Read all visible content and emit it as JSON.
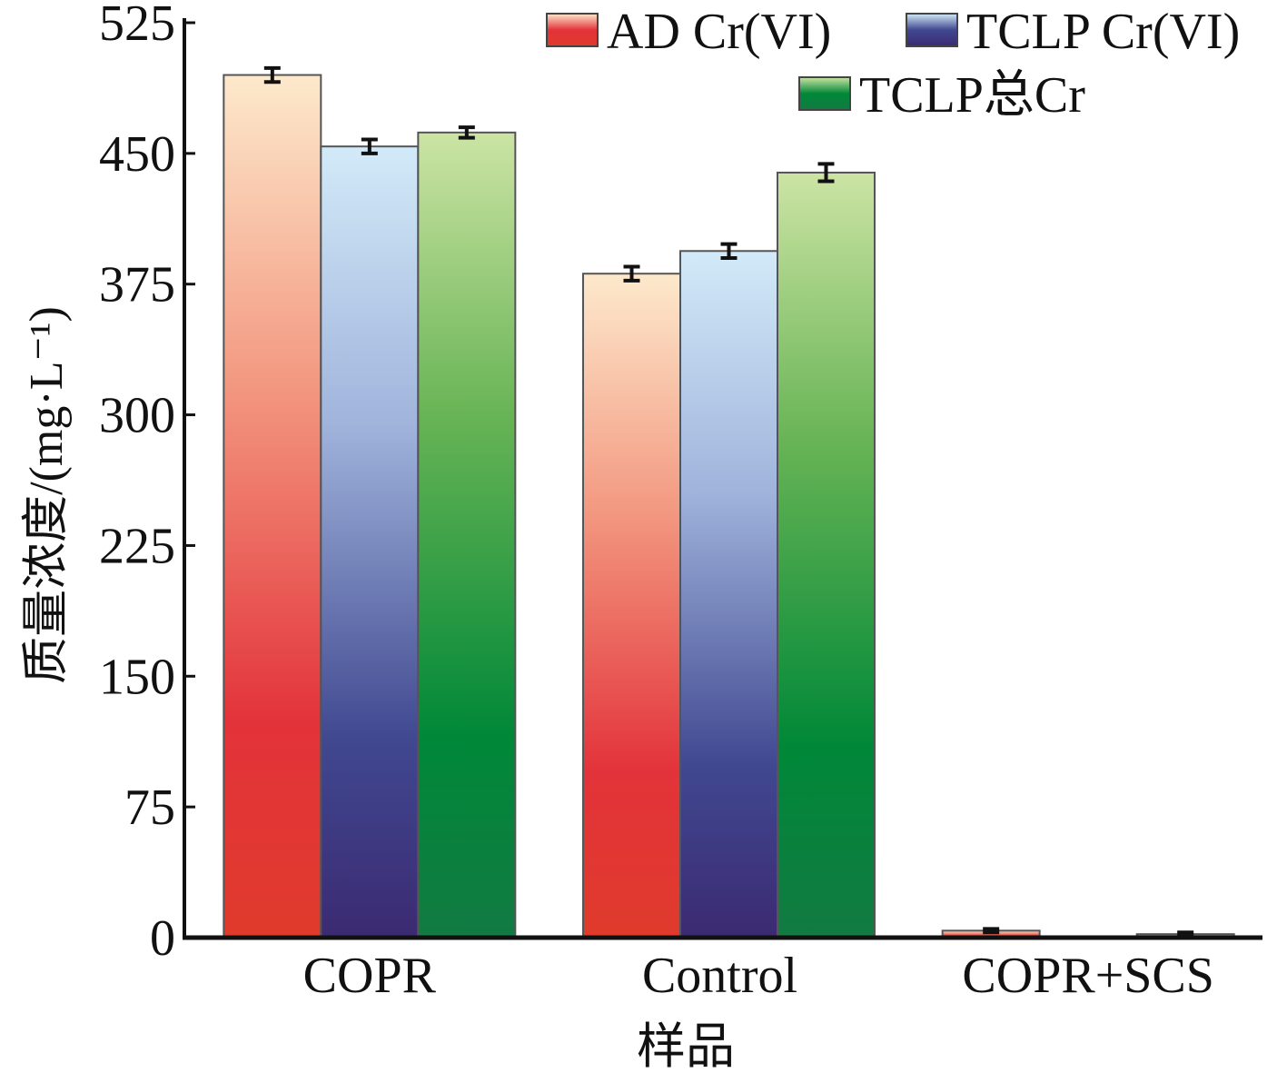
{
  "chart_data": {
    "type": "bar",
    "title": "",
    "xlabel": "样品",
    "ylabel": "质量浓度/(mg·L⁻¹)",
    "ylim": [
      0,
      525
    ],
    "yticks": [
      0,
      75,
      150,
      225,
      300,
      375,
      450,
      525
    ],
    "categories": [
      "COPR",
      "Control",
      "COPR+SCS"
    ],
    "series": [
      {
        "name": "AD Cr(VI)",
        "values": [
          495,
          381,
          4
        ],
        "errors": [
          4,
          4,
          1
        ],
        "colors": [
          "#fde9cc",
          "#f39a82",
          "#e3333a",
          "#e03a2c"
        ]
      },
      {
        "name": "TCLP Cr(VI)",
        "values": [
          454,
          394,
          0.3
        ],
        "errors": [
          4,
          4,
          0
        ],
        "colors": [
          "#d2eaf8",
          "#a0b4dc",
          "#404890",
          "#3b2a72"
        ]
      },
      {
        "name": "TCLP总Cr",
        "values": [
          462,
          439,
          2
        ],
        "errors": [
          3,
          5,
          1
        ],
        "colors": [
          "#cce4a4",
          "#68b455",
          "#008838",
          "#127a42"
        ]
      }
    ],
    "legend_position": "top-right",
    "grid": false
  }
}
